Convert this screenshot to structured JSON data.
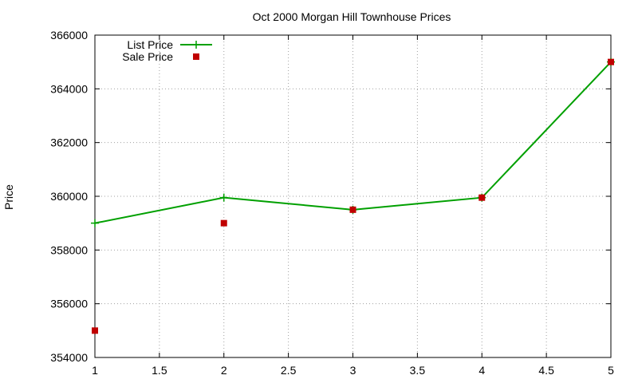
{
  "chart_data": {
    "type": "line",
    "title": "Oct 2000 Morgan Hill Townhouse Prices",
    "xlabel": "",
    "ylabel": "Price",
    "xlim": [
      1,
      5
    ],
    "ylim": [
      354000,
      366000
    ],
    "x_ticks": [
      "1",
      "1.5",
      "2",
      "2.5",
      "3",
      "3.5",
      "4",
      "4.5",
      "5"
    ],
    "y_ticks": [
      "354000",
      "356000",
      "358000",
      "360000",
      "362000",
      "364000",
      "366000"
    ],
    "grid": true,
    "legend_position": "top-left",
    "series": [
      {
        "name": "List Price",
        "style": "line-points",
        "color": "#00a000",
        "x": [
          1,
          2,
          3,
          4,
          5
        ],
        "values": [
          359000,
          359950,
          359500,
          359950,
          365000
        ]
      },
      {
        "name": "Sale Price",
        "style": "points",
        "color": "#c00000",
        "x": [
          1,
          2,
          3,
          4,
          5
        ],
        "values": [
          355000,
          359000,
          359500,
          359950,
          365000
        ]
      }
    ]
  }
}
